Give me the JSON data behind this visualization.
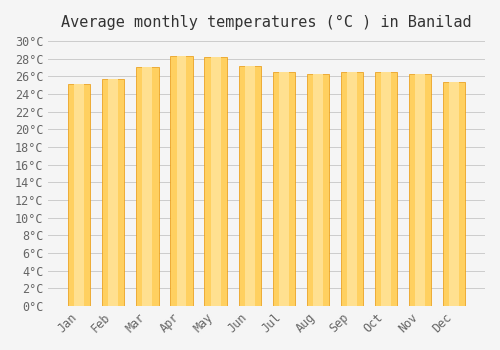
{
  "title": "Average monthly temperatures (°C ) in Banilad",
  "months": [
    "Jan",
    "Feb",
    "Mar",
    "Apr",
    "May",
    "Jun",
    "Jul",
    "Aug",
    "Sep",
    "Oct",
    "Nov",
    "Dec"
  ],
  "temperatures": [
    25.1,
    25.7,
    27.0,
    28.3,
    28.2,
    27.2,
    26.5,
    26.2,
    26.5,
    26.5,
    26.2,
    25.3
  ],
  "bar_color_top": "#FFA500",
  "bar_color_bottom": "#FFD060",
  "background_color": "#f5f5f5",
  "plot_bg_color": "#f5f5f5",
  "ylim": [
    0,
    30
  ],
  "ytick_step": 2,
  "title_fontsize": 11,
  "tick_fontsize": 8.5,
  "grid_color": "#cccccc"
}
